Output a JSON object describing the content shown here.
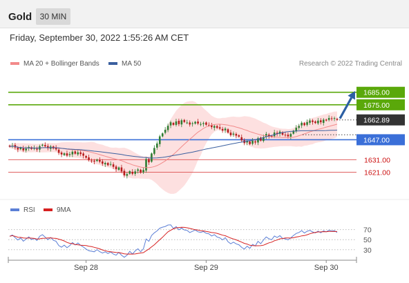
{
  "header": {
    "title": "Gold",
    "timeframe": "30 MIN"
  },
  "datetime": "Friday, September 30, 2022 1:55:26 AM CET",
  "colors": {
    "up_candle": "#2e7d32",
    "down_candle": "#b71c1c",
    "ma20": "#f28a8a",
    "ma50": "#3a5f9f",
    "band": "#fcd6d6",
    "resistance": "#5aa80a",
    "pivot": "#3a6fd8",
    "support": "#e06060",
    "target_arrow": "#2c5fa3",
    "rsi": "#5b7fd6",
    "rsi_ma": "#d62020",
    "price_tag": "#333333"
  },
  "chart_data": [
    {
      "type": "candlestick",
      "name": "price",
      "legend": [
        {
          "label": "MA 20 + Bollinger Bands",
          "color": "#f28a8a"
        },
        {
          "label": "MA 50",
          "color": "#3a5f9f"
        }
      ],
      "credit": "Research © 2022 Trading Central",
      "ylim": [
        1603,
        1702
      ],
      "levels": [
        {
          "label": "1685.00",
          "value": 1685,
          "kind": "resistance"
        },
        {
          "label": "1675.00",
          "value": 1675,
          "kind": "resistance"
        },
        {
          "label": "1647.00",
          "value": 1647,
          "kind": "pivot"
        },
        {
          "label": "1631.00",
          "value": 1631,
          "kind": "support"
        },
        {
          "label": "1621.00",
          "value": 1621,
          "kind": "support"
        }
      ],
      "last_price": {
        "label": "1662.89",
        "value": 1662.89
      },
      "target": {
        "from": 1664,
        "to": 1686
      },
      "closes": [
        1641.5,
        1642.3,
        1640.8,
        1639.2,
        1640.6,
        1638.5,
        1639.8,
        1641.2,
        1639.6,
        1640.3,
        1639.1,
        1641.8,
        1643.0,
        1641.7,
        1640.2,
        1641.6,
        1640.0,
        1639.3,
        1636.5,
        1635.2,
        1636.1,
        1634.3,
        1635.5,
        1637.4,
        1635.8,
        1636.9,
        1635.5,
        1634.2,
        1632.6,
        1630.8,
        1630.2,
        1629.5,
        1631.0,
        1629.4,
        1627.8,
        1628.4,
        1626.6,
        1627.5,
        1625.3,
        1623.4,
        1624.8,
        1621.6,
        1618.4,
        1619.5,
        1621.8,
        1619.7,
        1621.6,
        1623.2,
        1620.6,
        1622.8,
        1631.5,
        1628.9,
        1636.0,
        1640.4,
        1644.0,
        1649.7,
        1652.1,
        1655.0,
        1658.2,
        1661.0,
        1658.9,
        1661.7,
        1659.5,
        1662.6,
        1661.2,
        1660.8,
        1659.2,
        1660.2,
        1661.3,
        1660.0,
        1659.6,
        1660.3,
        1659.0,
        1658.6,
        1657.1,
        1658.0,
        1656.5,
        1655.9,
        1654.3,
        1655.9,
        1652.7,
        1650.6,
        1651.9,
        1650.3,
        1649.5,
        1646.5,
        1644.3,
        1645.9,
        1643.5,
        1646.2,
        1644.8,
        1648.2,
        1646.3,
        1649.0,
        1651.6,
        1650.1,
        1649.3,
        1652.8,
        1651.5,
        1653.5,
        1651.0,
        1650.6,
        1649.7,
        1651.6,
        1654.2,
        1656.6,
        1658.0,
        1660.6,
        1658.7,
        1661.1,
        1662.4,
        1661.2,
        1660.4,
        1662.3,
        1661.0,
        1663.1,
        1662.4,
        1664.4,
        1663.8,
        1664.3,
        1662.9
      ]
    },
    {
      "type": "line",
      "name": "rsi",
      "legend": [
        {
          "label": "RSI",
          "color": "#5b7fd6"
        },
        {
          "label": "9MA",
          "color": "#d62020"
        }
      ],
      "ylim": [
        16,
        90
      ],
      "y_ticks": [
        "70",
        "50",
        "30"
      ],
      "rsi_values": [
        56.7,
        59.2,
        54.1,
        49.3,
        53.4,
        47.0,
        51.1,
        55.4,
        50.2,
        52.5,
        48.4,
        56.8,
        59.9,
        55.0,
        49.9,
        54.4,
        48.8,
        46.5,
        38.2,
        35.1,
        39.0,
        33.9,
        38.1,
        44.3,
        39.5,
        43.4,
        38.8,
        35.3,
        31.4,
        27.9,
        27.0,
        25.8,
        30.2,
        26.2,
        23.4,
        25.9,
        22.4,
        25.5,
        21.4,
        19.2,
        24.8,
        18.9,
        15.1,
        19.0,
        26.8,
        21.5,
        27.6,
        31.9,
        25.8,
        31.9,
        51.2,
        46.7,
        58.2,
        63.5,
        67.4,
        72.7,
        74.8,
        76.1,
        79.0,
        79.3,
        72.2,
        75.9,
        69.4,
        73.0,
        69.3,
        68.4,
        64.1,
        66.5,
        69.2,
        65.6,
        64.4,
        66.2,
        62.6,
        61.6,
        57.3,
        59.8,
        55.3,
        53.6,
        49.6,
        53.8,
        46.0,
        41.7,
        45.1,
        41.6,
        39.9,
        34.6,
        31.2,
        36.9,
        32.7,
        40.6,
        37.5,
        46.7,
        42.0,
        49.4,
        55.3,
        51.7,
        49.8,
        57.3,
        54.2,
        58.0,
        52.4,
        51.6,
        49.5,
        53.6,
        58.4,
        62.3,
        64.3,
        67.9,
        63.2,
        66.7,
        68.4,
        65.3,
        63.4,
        66.9,
        63.5,
        67.5,
        65.6,
        68.8,
        67.2,
        67.8,
        64.3
      ]
    }
  ],
  "x_axis": {
    "ticks": [
      "Sep 28",
      "Sep 29",
      "Sep 30"
    ]
  }
}
